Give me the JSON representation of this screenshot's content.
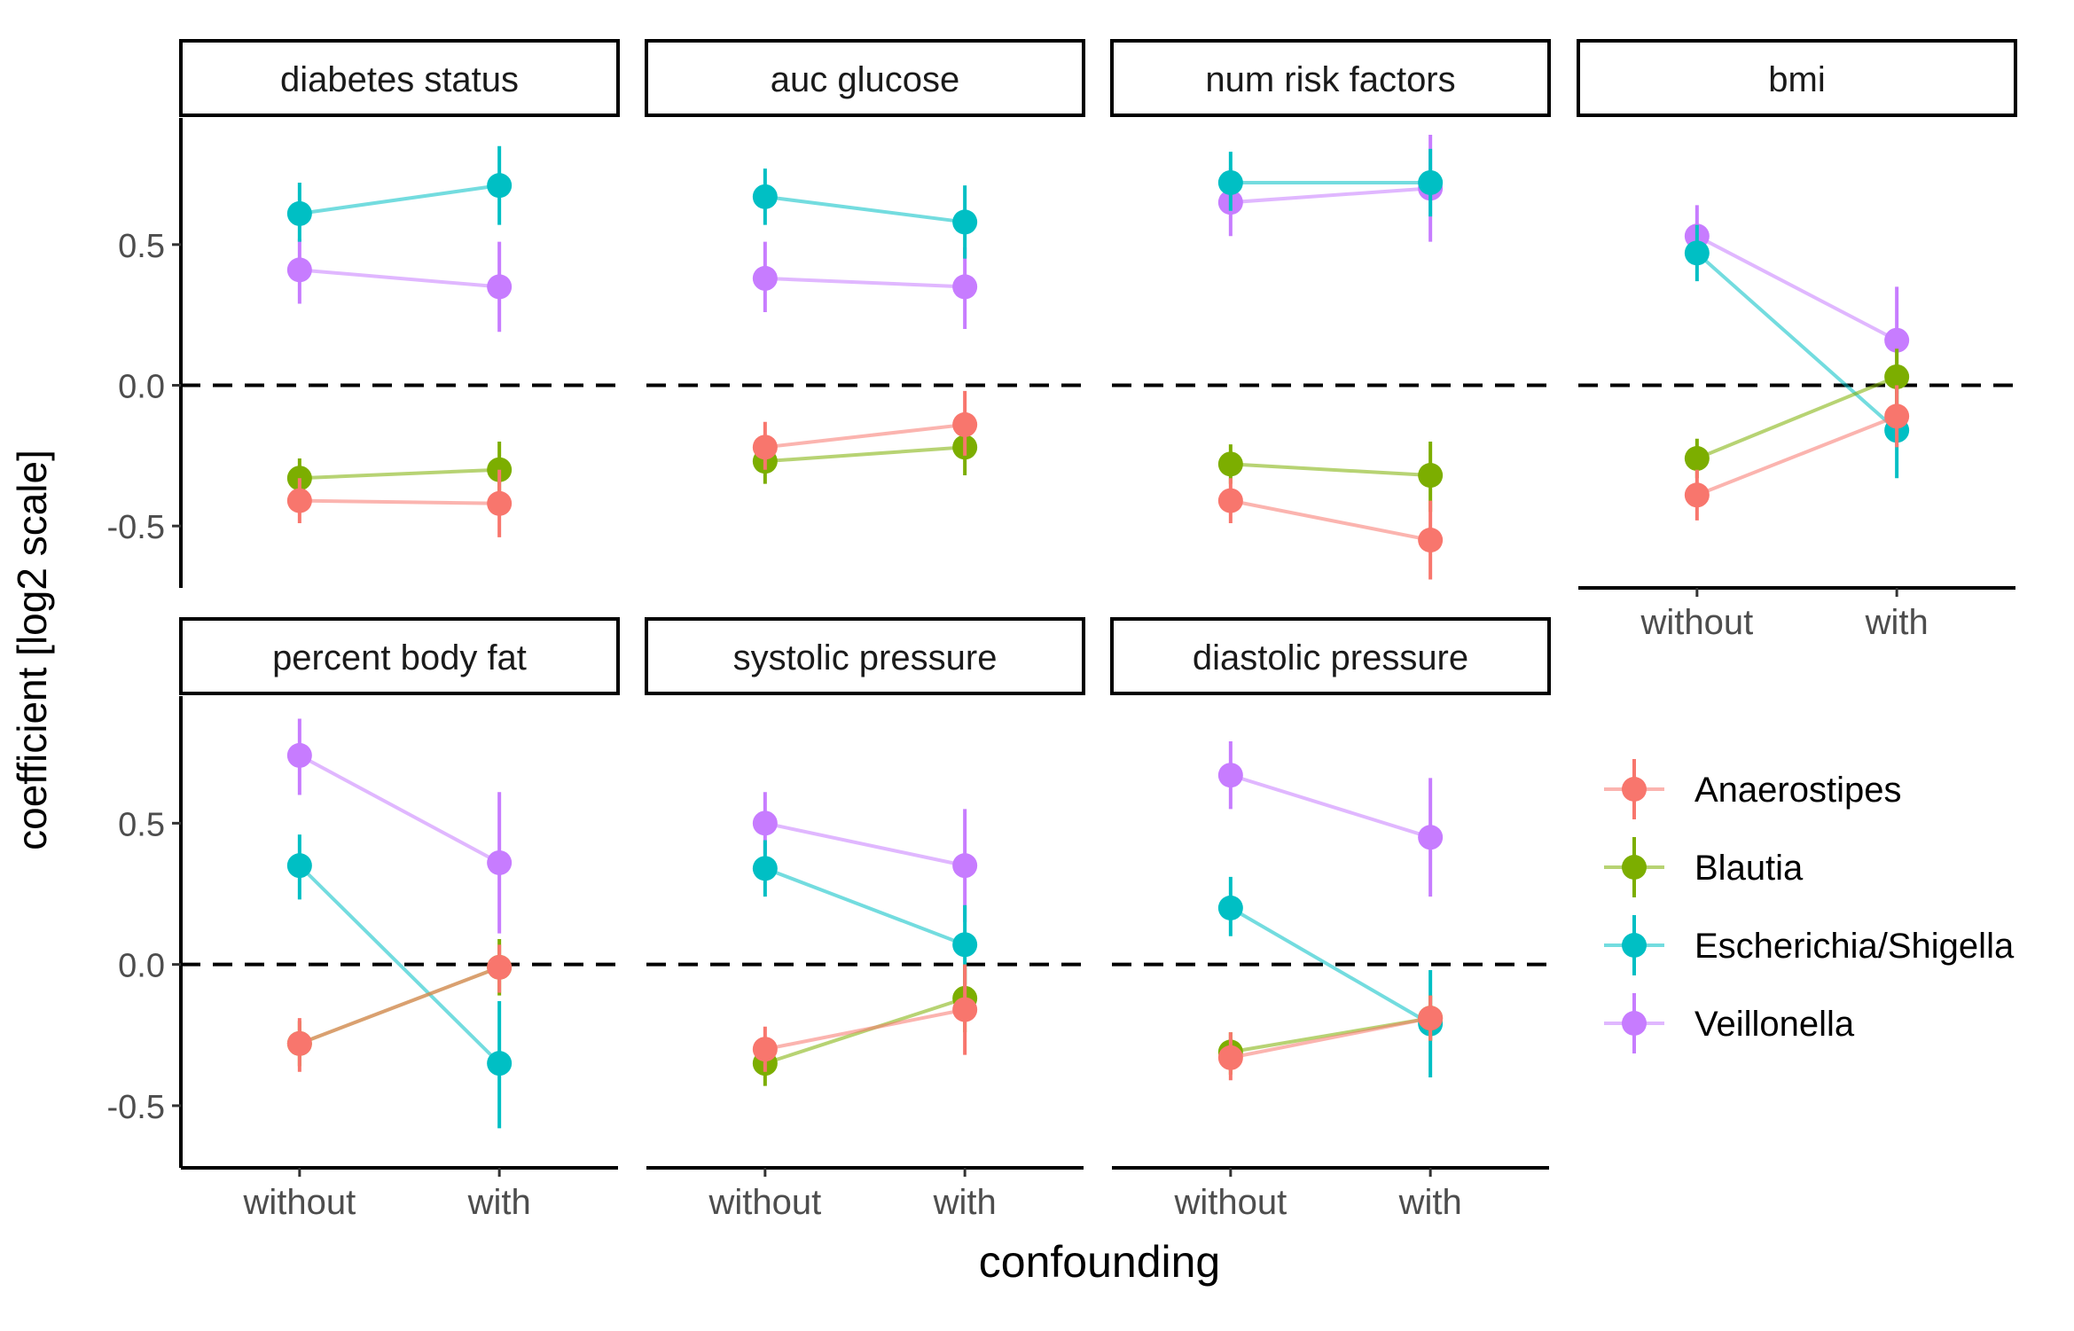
{
  "chart_data": {
    "type": "scatter",
    "layout": "faceted point-range with connecting lines",
    "xlabel": "confounding",
    "ylabel": "coefficient [log2 scale]",
    "x_categories": [
      "without",
      "with"
    ],
    "ylim": [
      -0.72,
      0.95
    ],
    "yticks": [
      -0.5,
      0.0,
      0.5
    ],
    "ytick_labels": [
      "-0.5",
      "0.0",
      "0.5"
    ],
    "reference_line": 0.0,
    "grid": false,
    "legend_position": "right",
    "series": [
      {
        "name": "Anaerostipes",
        "color": "#F8766D"
      },
      {
        "name": "Blautia",
        "color": "#7CAE00"
      },
      {
        "name": "Escherichia/Shigella",
        "color": "#00BFC4"
      },
      {
        "name": "Veillonella",
        "color": "#C77CFF"
      }
    ],
    "panels": [
      {
        "title": "diabetes status",
        "values": {
          "Anaerostipes": [
            {
              "y": -0.41,
              "lo": -0.49,
              "hi": -0.33
            },
            {
              "y": -0.42,
              "lo": -0.54,
              "hi": -0.3
            }
          ],
          "Blautia": [
            {
              "y": -0.33,
              "lo": -0.4,
              "hi": -0.26
            },
            {
              "y": -0.3,
              "lo": -0.39,
              "hi": -0.2
            }
          ],
          "Escherichia/Shigella": [
            {
              "y": 0.61,
              "lo": 0.51,
              "hi": 0.72
            },
            {
              "y": 0.71,
              "lo": 0.57,
              "hi": 0.85
            }
          ],
          "Veillonella": [
            {
              "y": 0.41,
              "lo": 0.29,
              "hi": 0.52
            },
            {
              "y": 0.35,
              "lo": 0.19,
              "hi": 0.51
            }
          ]
        }
      },
      {
        "title": "auc glucose",
        "values": {
          "Anaerostipes": [
            {
              "y": -0.22,
              "lo": -0.3,
              "hi": -0.13
            },
            {
              "y": -0.14,
              "lo": -0.25,
              "hi": -0.02
            }
          ],
          "Blautia": [
            {
              "y": -0.27,
              "lo": -0.35,
              "hi": -0.2
            },
            {
              "y": -0.22,
              "lo": -0.32,
              "hi": -0.12
            }
          ],
          "Escherichia/Shigella": [
            {
              "y": 0.67,
              "lo": 0.57,
              "hi": 0.77
            },
            {
              "y": 0.58,
              "lo": 0.45,
              "hi": 0.71
            }
          ],
          "Veillonella": [
            {
              "y": 0.38,
              "lo": 0.26,
              "hi": 0.51
            },
            {
              "y": 0.35,
              "lo": 0.2,
              "hi": 0.49
            }
          ]
        }
      },
      {
        "title": "num risk factors",
        "values": {
          "Anaerostipes": [
            {
              "y": -0.41,
              "lo": -0.49,
              "hi": -0.33
            },
            {
              "y": -0.55,
              "lo": -0.69,
              "hi": -0.41
            }
          ],
          "Blautia": [
            {
              "y": -0.28,
              "lo": -0.35,
              "hi": -0.21
            },
            {
              "y": -0.32,
              "lo": -0.45,
              "hi": -0.2
            }
          ],
          "Escherichia/Shigella": [
            {
              "y": 0.72,
              "lo": 0.62,
              "hi": 0.83
            },
            {
              "y": 0.72,
              "lo": 0.6,
              "hi": 0.84
            }
          ],
          "Veillonella": [
            {
              "y": 0.65,
              "lo": 0.53,
              "hi": 0.77
            },
            {
              "y": 0.7,
              "lo": 0.51,
              "hi": 0.89
            }
          ]
        }
      },
      {
        "title": "bmi",
        "values": {
          "Anaerostipes": [
            {
              "y": -0.39,
              "lo": -0.48,
              "hi": -0.3
            },
            {
              "y": -0.11,
              "lo": -0.22,
              "hi": 0.0
            }
          ],
          "Blautia": [
            {
              "y": -0.26,
              "lo": -0.33,
              "hi": -0.19
            },
            {
              "y": 0.03,
              "lo": -0.07,
              "hi": 0.13
            }
          ],
          "Escherichia/Shigella": [
            {
              "y": 0.47,
              "lo": 0.37,
              "hi": 0.57
            },
            {
              "y": -0.16,
              "lo": -0.33,
              "hi": 0.0
            }
          ],
          "Veillonella": [
            {
              "y": 0.53,
              "lo": 0.43,
              "hi": 0.64
            },
            {
              "y": 0.16,
              "lo": -0.03,
              "hi": 0.35
            }
          ]
        }
      },
      {
        "title": "percent body fat",
        "values": {
          "Anaerostipes": [
            {
              "y": -0.28,
              "lo": -0.38,
              "hi": -0.19
            },
            {
              "y": -0.01,
              "lo": -0.1,
              "hi": 0.07
            }
          ],
          "Blautia": [
            {
              "y": -0.28,
              "lo": -0.36,
              "hi": -0.2
            },
            {
              "y": -0.01,
              "lo": -0.11,
              "hi": 0.09
            }
          ],
          "Escherichia/Shigella": [
            {
              "y": 0.35,
              "lo": 0.23,
              "hi": 0.46
            },
            {
              "y": -0.35,
              "lo": -0.58,
              "hi": -0.13
            }
          ],
          "Veillonella": [
            {
              "y": 0.74,
              "lo": 0.6,
              "hi": 0.87
            },
            {
              "y": 0.36,
              "lo": 0.11,
              "hi": 0.61
            }
          ]
        }
      },
      {
        "title": "systolic pressure",
        "values": {
          "Anaerostipes": [
            {
              "y": -0.3,
              "lo": -0.38,
              "hi": -0.22
            },
            {
              "y": -0.16,
              "lo": -0.32,
              "hi": 0.0
            }
          ],
          "Blautia": [
            {
              "y": -0.35,
              "lo": -0.43,
              "hi": -0.27
            },
            {
              "y": -0.12,
              "lo": -0.24,
              "hi": 0.0
            }
          ],
          "Escherichia/Shigella": [
            {
              "y": 0.34,
              "lo": 0.24,
              "hi": 0.44
            },
            {
              "y": 0.07,
              "lo": -0.07,
              "hi": 0.21
            }
          ],
          "Veillonella": [
            {
              "y": 0.5,
              "lo": 0.39,
              "hi": 0.61
            },
            {
              "y": 0.35,
              "lo": 0.15,
              "hi": 0.55
            }
          ]
        }
      },
      {
        "title": "diastolic pressure",
        "values": {
          "Anaerostipes": [
            {
              "y": -0.33,
              "lo": -0.41,
              "hi": -0.24
            },
            {
              "y": -0.19,
              "lo": -0.27,
              "hi": -0.11
            }
          ],
          "Blautia": [
            {
              "y": -0.31,
              "lo": -0.39,
              "hi": -0.24
            },
            {
              "y": -0.19,
              "lo": -0.27,
              "hi": -0.11
            }
          ],
          "Escherichia/Shigella": [
            {
              "y": 0.2,
              "lo": 0.1,
              "hi": 0.31
            },
            {
              "y": -0.21,
              "lo": -0.4,
              "hi": -0.02
            }
          ],
          "Veillonella": [
            {
              "y": 0.67,
              "lo": 0.55,
              "hi": 0.79
            },
            {
              "y": 0.45,
              "lo": 0.24,
              "hi": 0.66
            }
          ]
        }
      }
    ]
  }
}
